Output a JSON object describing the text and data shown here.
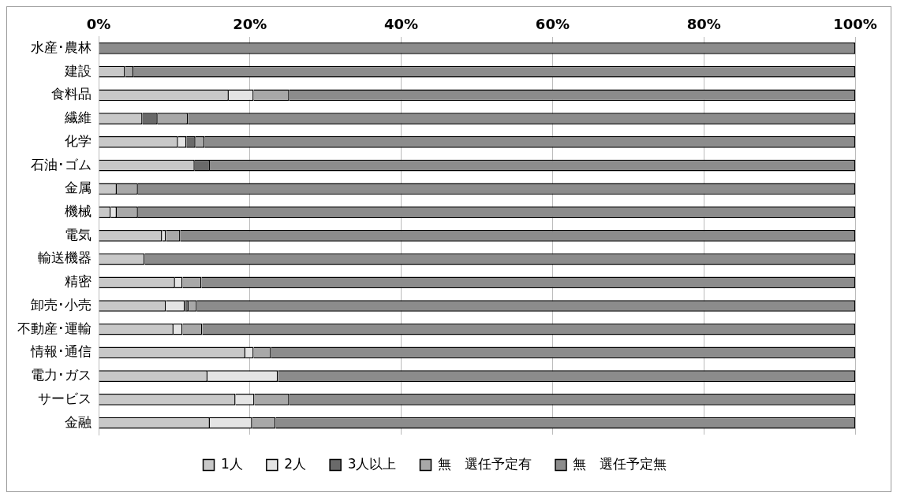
{
  "chart_data": {
    "type": "bar",
    "orientation": "horizontal",
    "stacked": true,
    "categories": [
      "水産･農林",
      "建設",
      "食料品",
      "繊維",
      "化学",
      "石油･ゴム",
      "金属",
      "機械",
      "電気",
      "輸送機器",
      "精密",
      "卸売･小売",
      "不動産･運輸",
      "情報･通信",
      "電力･ガス",
      "サービス",
      "金融"
    ],
    "series": [
      {
        "name": "1人",
        "color": "#c8c8c8",
        "values": [
          0,
          3.5,
          17.2,
          5.8,
          10.5,
          12.7,
          2.4,
          1.6,
          8.4,
          6.1,
          10.1,
          8.9,
          9.9,
          19.4,
          14.4,
          18.1,
          14.7
        ]
      },
      {
        "name": "2人",
        "color": "#e4e4e4",
        "values": [
          0,
          0,
          3.3,
          0,
          1.1,
          0,
          0,
          0.8,
          0.5,
          0,
          1.0,
          2.5,
          1.2,
          1.1,
          9.3,
          2.5,
          5.6
        ]
      },
      {
        "name": "3人以上",
        "color": "#6a6a6a",
        "values": [
          0,
          0,
          0,
          2.0,
          1.2,
          2.0,
          0,
          0,
          0,
          0,
          0,
          0.5,
          0,
          0,
          0,
          0,
          0
        ]
      },
      {
        "name": "無　選任予定有",
        "color": "#a8a8a8",
        "values": [
          0,
          1.1,
          4.7,
          4.0,
          1.2,
          0,
          2.8,
          2.8,
          1.9,
          0,
          2.5,
          1.1,
          2.6,
          2.3,
          0,
          4.6,
          3.1
        ]
      },
      {
        "name": "無　選任予定無",
        "color": "#8c8c8c",
        "values": [
          100,
          95.4,
          74.8,
          88.2,
          86.0,
          85.3,
          94.8,
          94.8,
          89.2,
          93.9,
          86.4,
          87.0,
          86.3,
          77.2,
          76.3,
          74.8,
          76.6
        ]
      }
    ],
    "xlim": [
      0,
      100
    ],
    "xticks": [
      {
        "value": 0,
        "label": "0%"
      },
      {
        "value": 20,
        "label": "20%"
      },
      {
        "value": 40,
        "label": "40%"
      },
      {
        "value": 60,
        "label": "60%"
      },
      {
        "value": 80,
        "label": "80%"
      },
      {
        "value": 100,
        "label": "100%"
      }
    ],
    "grid": "x",
    "legend": "bottom"
  }
}
